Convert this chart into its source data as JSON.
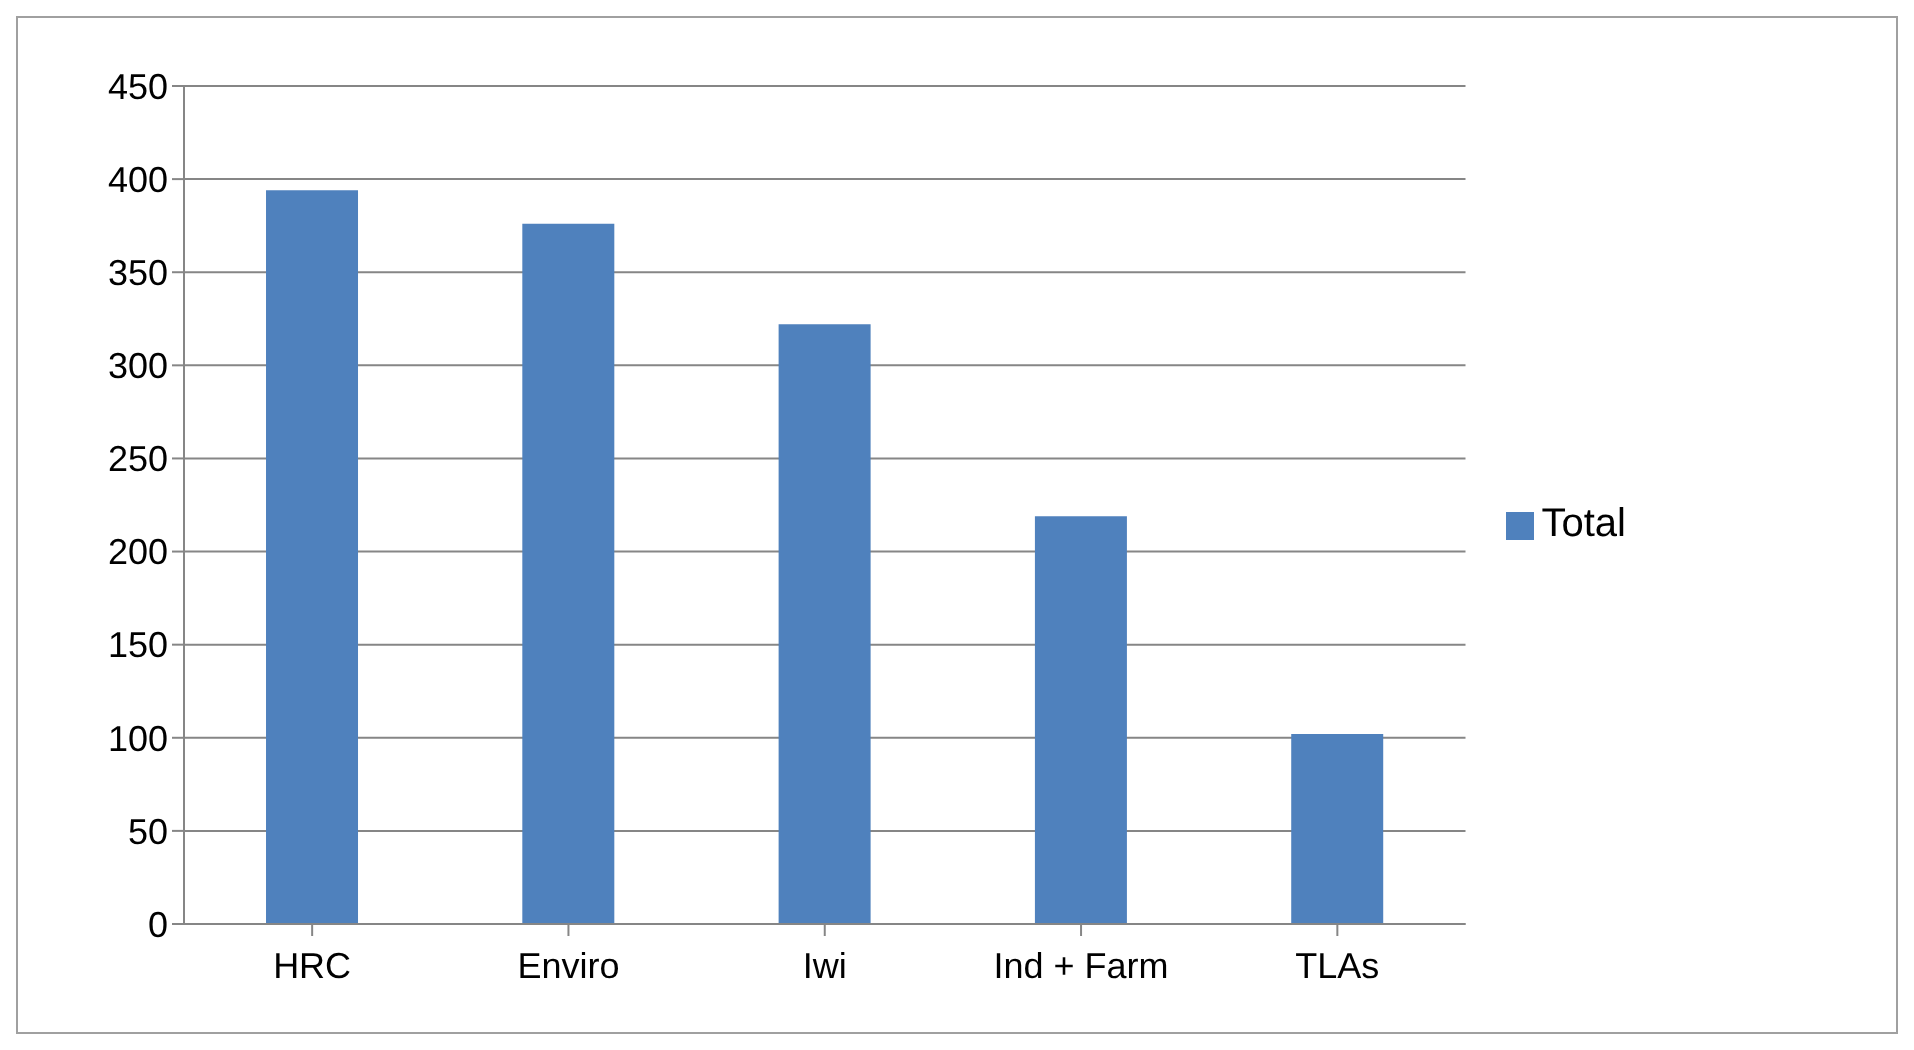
{
  "chart_data": {
    "type": "bar",
    "categories": [
      "HRC",
      "Enviro",
      "Iwi",
      "Ind + Farm",
      "TLAs"
    ],
    "series": [
      {
        "name": "Total",
        "color": "#4f81bd",
        "values": [
          394,
          376,
          322,
          219,
          102
        ]
      }
    ],
    "ylim": [
      0,
      450
    ],
    "yticks": [
      0,
      50,
      100,
      150,
      200,
      250,
      300,
      350,
      400,
      450
    ],
    "grid": "y",
    "legend": "right"
  }
}
